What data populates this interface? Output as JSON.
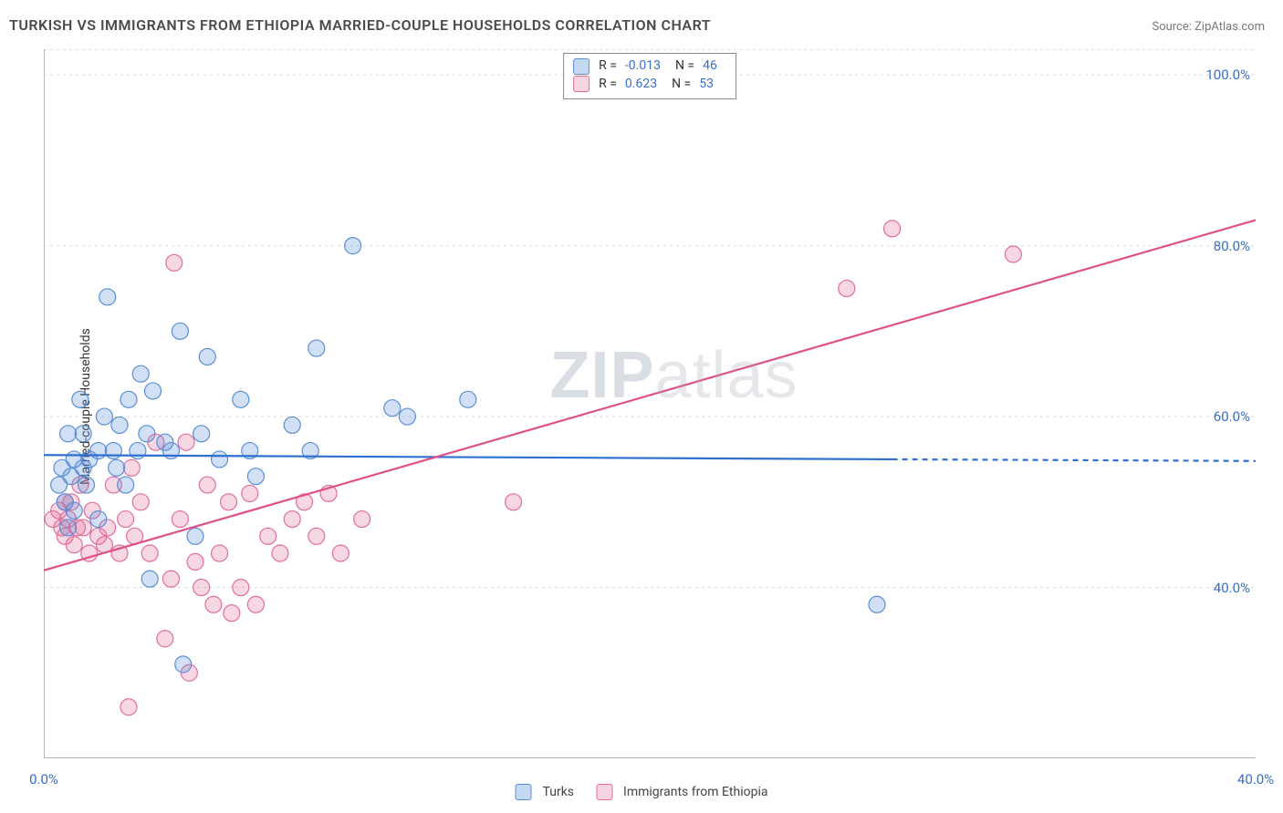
{
  "title": "TURKISH VS IMMIGRANTS FROM ETHIOPIA MARRIED-COUPLE HOUSEHOLDS CORRELATION CHART",
  "source_prefix": "Source: ",
  "source_name": "ZipAtlas.com",
  "ylabel": "Married-couple Households",
  "watermark_a": "ZIP",
  "watermark_b": "atlas",
  "chart": {
    "type": "scatter",
    "background_color": "#ffffff",
    "grid_color": "#d9d9d9",
    "axis_color": "#888888",
    "tick_label_color": "#3a70c4",
    "xlim": [
      0,
      40
    ],
    "ylim": [
      20,
      103
    ],
    "x_ticks": [
      0,
      40
    ],
    "x_tick_labels": [
      "0.0%",
      "40.0%"
    ],
    "x_minor_ticks": [
      3.3,
      6.6,
      10,
      13.3,
      16.7,
      20,
      23.3,
      26.7,
      30,
      33.3,
      36.7
    ],
    "y_ticks": [
      40,
      60,
      80,
      100
    ],
    "y_tick_labels": [
      "40.0%",
      "60.0%",
      "80.0%",
      "100.0%"
    ],
    "y_grid": [
      40,
      60,
      80,
      100
    ],
    "top_gridline": true,
    "marker_radius": 9,
    "marker_stroke_width": 1.2,
    "marker_fill_opacity": 0.28,
    "trend_line_width": 2.2
  },
  "series": [
    {
      "id": "turks",
      "label": "Turks",
      "color_stroke": "#5a8fd6",
      "color_fill": "#5a8fd6",
      "swatch_fill": "rgba(90,143,214,0.35)",
      "swatch_border": "#5a8fd6",
      "R": "-0.013",
      "N": "46",
      "trend": {
        "color": "#2f6fd0",
        "x1": 0,
        "y1": 55.5,
        "x2": 28,
        "y2": 55.0,
        "dash_x2": 40,
        "dash_y2": 54.8
      },
      "points": [
        [
          0.5,
          52
        ],
        [
          0.6,
          54
        ],
        [
          0.7,
          50
        ],
        [
          0.8,
          47
        ],
        [
          0.8,
          58
        ],
        [
          0.9,
          53
        ],
        [
          1.0,
          55
        ],
        [
          1.0,
          49
        ],
        [
          1.2,
          62
        ],
        [
          1.3,
          54
        ],
        [
          1.3,
          58
        ],
        [
          1.4,
          52
        ],
        [
          1.5,
          55
        ],
        [
          1.8,
          48
        ],
        [
          1.8,
          56
        ],
        [
          2.0,
          60
        ],
        [
          2.1,
          74
        ],
        [
          2.3,
          56
        ],
        [
          2.4,
          54
        ],
        [
          2.5,
          59
        ],
        [
          2.7,
          52
        ],
        [
          2.8,
          62
        ],
        [
          3.1,
          56
        ],
        [
          3.2,
          65
        ],
        [
          3.4,
          58
        ],
        [
          3.5,
          41
        ],
        [
          3.6,
          63
        ],
        [
          4.0,
          57
        ],
        [
          4.2,
          56
        ],
        [
          4.5,
          70
        ],
        [
          4.6,
          31
        ],
        [
          5.0,
          46
        ],
        [
          5.2,
          58
        ],
        [
          5.4,
          67
        ],
        [
          5.8,
          55
        ],
        [
          6.5,
          62
        ],
        [
          6.8,
          56
        ],
        [
          7.0,
          53
        ],
        [
          8.2,
          59
        ],
        [
          8.8,
          56
        ],
        [
          9.0,
          68
        ],
        [
          10.2,
          80
        ],
        [
          11.5,
          61
        ],
        [
          12.0,
          60
        ],
        [
          14.0,
          62
        ],
        [
          27.5,
          38
        ]
      ]
    },
    {
      "id": "ethiopia",
      "label": "Immigrants from Ethiopia",
      "color_stroke": "#e16f9c",
      "color_fill": "#e16f9c",
      "swatch_fill": "rgba(225,111,156,0.3)",
      "swatch_border": "#e16f9c",
      "R": "0.623",
      "N": "53",
      "trend": {
        "color": "#e05088",
        "x1": 0,
        "y1": 42,
        "x2": 40,
        "y2": 83,
        "dash_x2": null,
        "dash_y2": null
      },
      "points": [
        [
          0.3,
          48
        ],
        [
          0.5,
          49
        ],
        [
          0.6,
          47
        ],
        [
          0.7,
          50
        ],
        [
          0.7,
          46
        ],
        [
          0.8,
          48
        ],
        [
          0.9,
          50
        ],
        [
          1.0,
          45
        ],
        [
          1.1,
          47
        ],
        [
          1.2,
          52
        ],
        [
          1.3,
          47
        ],
        [
          1.5,
          44
        ],
        [
          1.6,
          49
        ],
        [
          1.8,
          46
        ],
        [
          2.0,
          45
        ],
        [
          2.1,
          47
        ],
        [
          2.3,
          52
        ],
        [
          2.5,
          44
        ],
        [
          2.7,
          48
        ],
        [
          2.9,
          54
        ],
        [
          3.0,
          46
        ],
        [
          3.2,
          50
        ],
        [
          3.5,
          44
        ],
        [
          3.7,
          57
        ],
        [
          4.0,
          34
        ],
        [
          4.2,
          41
        ],
        [
          4.3,
          78
        ],
        [
          4.5,
          48
        ],
        [
          4.7,
          57
        ],
        [
          4.8,
          30
        ],
        [
          5.0,
          43
        ],
        [
          5.2,
          40
        ],
        [
          5.4,
          52
        ],
        [
          5.6,
          38
        ],
        [
          5.8,
          44
        ],
        [
          6.1,
          50
        ],
        [
          6.2,
          37
        ],
        [
          6.5,
          40
        ],
        [
          6.8,
          51
        ],
        [
          7.0,
          38
        ],
        [
          7.4,
          46
        ],
        [
          7.8,
          44
        ],
        [
          8.2,
          48
        ],
        [
          8.6,
          50
        ],
        [
          9.0,
          46
        ],
        [
          9.4,
          51
        ],
        [
          9.8,
          44
        ],
        [
          10.5,
          48
        ],
        [
          2.8,
          26
        ],
        [
          15.5,
          50
        ],
        [
          26.5,
          75
        ],
        [
          28.0,
          82
        ],
        [
          32.0,
          79
        ]
      ]
    }
  ],
  "stats_prefix_R": "R =",
  "stats_prefix_N": "N ="
}
